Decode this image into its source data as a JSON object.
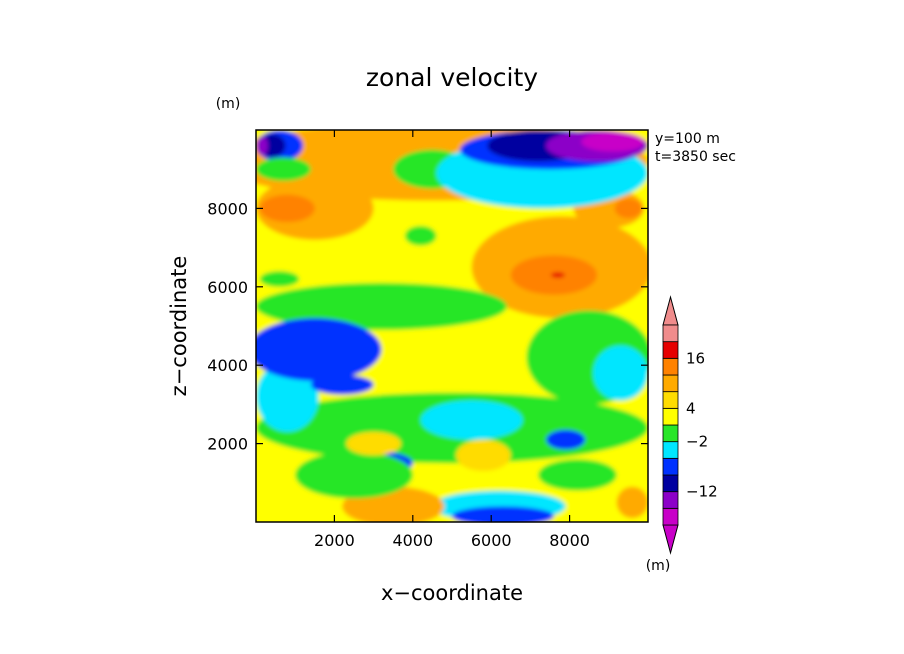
{
  "chart_data": {
    "type": "heatmap",
    "title": "zonal velocity",
    "xlabel": "x−coordinate",
    "ylabel": "z−coordinate",
    "y_unit": "(m)",
    "colorbar_unit": "(m)",
    "annotations": [
      "y=100 m",
      "t=3850 sec"
    ],
    "xlim": [
      0,
      10000
    ],
    "ylim": [
      0,
      10000
    ],
    "x_ticks": [
      2000,
      4000,
      6000,
      8000
    ],
    "y_ticks": [
      2000,
      4000,
      6000,
      8000
    ],
    "grid": false,
    "legend": "colorbar right",
    "colorbar": {
      "tick_labels": [
        "16",
        "4",
        "−2",
        "−12"
      ],
      "colors": [
        "#c800c8",
        "#8c00c8",
        "#0000a0",
        "#0032ff",
        "#00e6ff",
        "#28e628",
        "#ffff00",
        "#ffdc00",
        "#ffaa00",
        "#ff8200",
        "#e60000",
        "#f08c8c"
      ],
      "tick_levels": [
        16,
        4,
        -2,
        -12
      ]
    },
    "colors": {
      "magenta": "#c800c8",
      "purple": "#8c00c8",
      "navy": "#0000a0",
      "blue": "#0032ff",
      "cyan": "#00e6ff",
      "green": "#28e628",
      "yellow": "#ffff00",
      "gold": "#ffdc00",
      "orange": "#ffaa00",
      "darkorange": "#ff8200",
      "red": "#e60000",
      "pink": "#f08c8c"
    },
    "regions": [
      {
        "color": "yellow",
        "x": 5000,
        "z": 5000,
        "rx": 9000,
        "rz": 9000,
        "shape": "rect"
      },
      {
        "color": "orange",
        "x": 4500,
        "z": 9200,
        "rx": 5500,
        "rz": 1000
      },
      {
        "color": "orange",
        "x": 1500,
        "z": 8000,
        "rx": 1500,
        "rz": 800
      },
      {
        "color": "darkorange",
        "x": 800,
        "z": 8000,
        "rx": 700,
        "rz": 350
      },
      {
        "color": "orange",
        "x": 7800,
        "z": 6500,
        "rx": 2300,
        "rz": 1300
      },
      {
        "color": "darkorange",
        "x": 7600,
        "z": 6300,
        "rx": 1100,
        "rz": 500
      },
      {
        "color": "red",
        "x": 7700,
        "z": 6300,
        "rx": 180,
        "rz": 70
      },
      {
        "color": "orange",
        "x": 4200,
        "z": 9500,
        "rx": 700,
        "rz": 350
      },
      {
        "color": "orange",
        "x": 9000,
        "z": 8000,
        "rx": 900,
        "rz": 500
      },
      {
        "color": "darkorange",
        "x": 9500,
        "z": 8000,
        "rx": 350,
        "rz": 250
      },
      {
        "color": "green",
        "x": 3200,
        "z": 5500,
        "rx": 3200,
        "rz": 600
      },
      {
        "color": "green",
        "x": 8500,
        "z": 4200,
        "rx": 1600,
        "rz": 1200
      },
      {
        "color": "green",
        "x": 5000,
        "z": 2400,
        "rx": 5000,
        "rz": 900
      },
      {
        "color": "cyan",
        "x": 800,
        "z": 3200,
        "rx": 800,
        "rz": 900
      },
      {
        "color": "blue",
        "x": 1500,
        "z": 4400,
        "rx": 1700,
        "rz": 800
      },
      {
        "color": "blue",
        "x": 2200,
        "z": 3500,
        "rx": 800,
        "rz": 250
      },
      {
        "color": "cyan",
        "x": 5500,
        "z": 2600,
        "rx": 1300,
        "rz": 500
      },
      {
        "color": "cyan",
        "x": 9300,
        "z": 3800,
        "rx": 700,
        "rz": 700
      },
      {
        "color": "cyan",
        "x": 6200,
        "z": 400,
        "rx": 1700,
        "rz": 400
      },
      {
        "color": "blue",
        "x": 6300,
        "z": 150,
        "rx": 1300,
        "rz": 250
      },
      {
        "color": "blue",
        "x": 3100,
        "z": 1500,
        "rx": 900,
        "rz": 300
      },
      {
        "color": "blue",
        "x": 7900,
        "z": 2100,
        "rx": 500,
        "rz": 250
      },
      {
        "color": "orange",
        "x": 3500,
        "z": 400,
        "rx": 1300,
        "rz": 500
      },
      {
        "color": "green",
        "x": 2500,
        "z": 1200,
        "rx": 1500,
        "rz": 600
      },
      {
        "color": "green",
        "x": 4500,
        "z": 9000,
        "rx": 1000,
        "rz": 500
      },
      {
        "color": "cyan",
        "x": 7300,
        "z": 8900,
        "rx": 2700,
        "rz": 900
      },
      {
        "color": "blue",
        "x": 7500,
        "z": 9500,
        "rx": 2300,
        "rz": 500
      },
      {
        "color": "navy",
        "x": 7200,
        "z": 9600,
        "rx": 1300,
        "rz": 400
      },
      {
        "color": "purple",
        "x": 8700,
        "z": 9600,
        "rx": 1300,
        "rz": 400
      },
      {
        "color": "magenta",
        "x": 9100,
        "z": 9700,
        "rx": 800,
        "rz": 250
      },
      {
        "color": "blue",
        "x": 600,
        "z": 9600,
        "rx": 600,
        "rz": 400
      },
      {
        "color": "navy",
        "x": 400,
        "z": 9600,
        "rx": 350,
        "rz": 300
      },
      {
        "color": "purple",
        "x": 150,
        "z": 9600,
        "rx": 150,
        "rz": 250
      },
      {
        "color": "green",
        "x": 700,
        "z": 9000,
        "rx": 700,
        "rz": 300
      },
      {
        "color": "green",
        "x": 4200,
        "z": 7300,
        "rx": 400,
        "rz": 250
      },
      {
        "color": "gold",
        "x": 3000,
        "z": 2000,
        "rx": 700,
        "rz": 300
      },
      {
        "color": "gold",
        "x": 5800,
        "z": 1700,
        "rx": 700,
        "rz": 400
      },
      {
        "color": "orange",
        "x": 9600,
        "z": 500,
        "rx": 400,
        "rz": 400
      },
      {
        "color": "green",
        "x": 600,
        "z": 6200,
        "rx": 500,
        "rz": 200
      },
      {
        "color": "green",
        "x": 8200,
        "z": 1200,
        "rx": 1000,
        "rz": 400
      }
    ]
  }
}
